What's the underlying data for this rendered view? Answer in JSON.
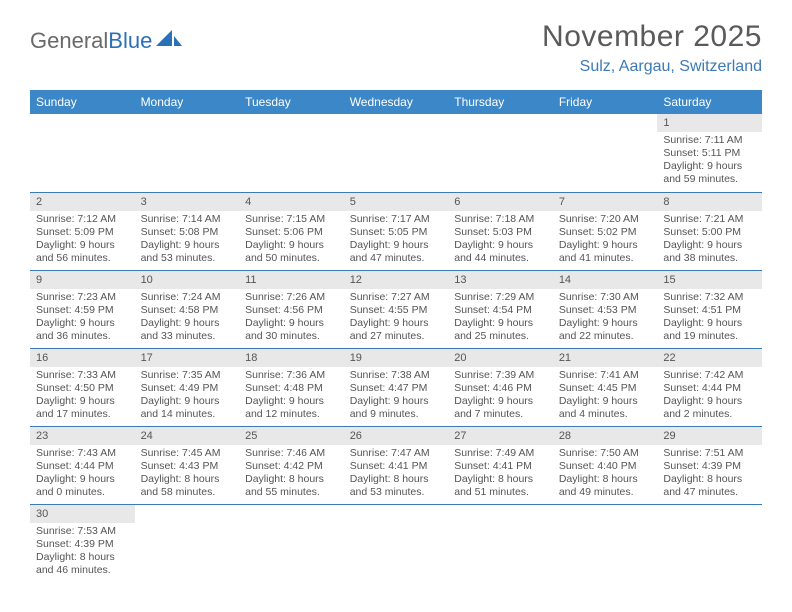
{
  "logo": {
    "text1": "General",
    "text2": "Blue"
  },
  "title": "November 2025",
  "location": "Sulz, Aargau, Switzerland",
  "colors": {
    "header_bg": "#3c87c7",
    "header_text": "#ffffff",
    "accent": "#3c7ab5",
    "daynum_bg": "#e8e8e8",
    "body_text": "#555555",
    "page_bg": "#ffffff"
  },
  "typography": {
    "title_fontsize": 30,
    "location_fontsize": 16,
    "weekday_fontsize": 12,
    "daynum_fontsize": 11,
    "body_fontsize": 10.5
  },
  "weekdays": [
    "Sunday",
    "Monday",
    "Tuesday",
    "Wednesday",
    "Thursday",
    "Friday",
    "Saturday"
  ],
  "weeks": [
    [
      null,
      null,
      null,
      null,
      null,
      null,
      {
        "n": "1",
        "sunrise": "Sunrise: 7:11 AM",
        "sunset": "Sunset: 5:11 PM",
        "daylight": "Daylight: 9 hours and 59 minutes."
      }
    ],
    [
      {
        "n": "2",
        "sunrise": "Sunrise: 7:12 AM",
        "sunset": "Sunset: 5:09 PM",
        "daylight": "Daylight: 9 hours and 56 minutes."
      },
      {
        "n": "3",
        "sunrise": "Sunrise: 7:14 AM",
        "sunset": "Sunset: 5:08 PM",
        "daylight": "Daylight: 9 hours and 53 minutes."
      },
      {
        "n": "4",
        "sunrise": "Sunrise: 7:15 AM",
        "sunset": "Sunset: 5:06 PM",
        "daylight": "Daylight: 9 hours and 50 minutes."
      },
      {
        "n": "5",
        "sunrise": "Sunrise: 7:17 AM",
        "sunset": "Sunset: 5:05 PM",
        "daylight": "Daylight: 9 hours and 47 minutes."
      },
      {
        "n": "6",
        "sunrise": "Sunrise: 7:18 AM",
        "sunset": "Sunset: 5:03 PM",
        "daylight": "Daylight: 9 hours and 44 minutes."
      },
      {
        "n": "7",
        "sunrise": "Sunrise: 7:20 AM",
        "sunset": "Sunset: 5:02 PM",
        "daylight": "Daylight: 9 hours and 41 minutes."
      },
      {
        "n": "8",
        "sunrise": "Sunrise: 7:21 AM",
        "sunset": "Sunset: 5:00 PM",
        "daylight": "Daylight: 9 hours and 38 minutes."
      }
    ],
    [
      {
        "n": "9",
        "sunrise": "Sunrise: 7:23 AM",
        "sunset": "Sunset: 4:59 PM",
        "daylight": "Daylight: 9 hours and 36 minutes."
      },
      {
        "n": "10",
        "sunrise": "Sunrise: 7:24 AM",
        "sunset": "Sunset: 4:58 PM",
        "daylight": "Daylight: 9 hours and 33 minutes."
      },
      {
        "n": "11",
        "sunrise": "Sunrise: 7:26 AM",
        "sunset": "Sunset: 4:56 PM",
        "daylight": "Daylight: 9 hours and 30 minutes."
      },
      {
        "n": "12",
        "sunrise": "Sunrise: 7:27 AM",
        "sunset": "Sunset: 4:55 PM",
        "daylight": "Daylight: 9 hours and 27 minutes."
      },
      {
        "n": "13",
        "sunrise": "Sunrise: 7:29 AM",
        "sunset": "Sunset: 4:54 PM",
        "daylight": "Daylight: 9 hours and 25 minutes."
      },
      {
        "n": "14",
        "sunrise": "Sunrise: 7:30 AM",
        "sunset": "Sunset: 4:53 PM",
        "daylight": "Daylight: 9 hours and 22 minutes."
      },
      {
        "n": "15",
        "sunrise": "Sunrise: 7:32 AM",
        "sunset": "Sunset: 4:51 PM",
        "daylight": "Daylight: 9 hours and 19 minutes."
      }
    ],
    [
      {
        "n": "16",
        "sunrise": "Sunrise: 7:33 AM",
        "sunset": "Sunset: 4:50 PM",
        "daylight": "Daylight: 9 hours and 17 minutes."
      },
      {
        "n": "17",
        "sunrise": "Sunrise: 7:35 AM",
        "sunset": "Sunset: 4:49 PM",
        "daylight": "Daylight: 9 hours and 14 minutes."
      },
      {
        "n": "18",
        "sunrise": "Sunrise: 7:36 AM",
        "sunset": "Sunset: 4:48 PM",
        "daylight": "Daylight: 9 hours and 12 minutes."
      },
      {
        "n": "19",
        "sunrise": "Sunrise: 7:38 AM",
        "sunset": "Sunset: 4:47 PM",
        "daylight": "Daylight: 9 hours and 9 minutes."
      },
      {
        "n": "20",
        "sunrise": "Sunrise: 7:39 AM",
        "sunset": "Sunset: 4:46 PM",
        "daylight": "Daylight: 9 hours and 7 minutes."
      },
      {
        "n": "21",
        "sunrise": "Sunrise: 7:41 AM",
        "sunset": "Sunset: 4:45 PM",
        "daylight": "Daylight: 9 hours and 4 minutes."
      },
      {
        "n": "22",
        "sunrise": "Sunrise: 7:42 AM",
        "sunset": "Sunset: 4:44 PM",
        "daylight": "Daylight: 9 hours and 2 minutes."
      }
    ],
    [
      {
        "n": "23",
        "sunrise": "Sunrise: 7:43 AM",
        "sunset": "Sunset: 4:44 PM",
        "daylight": "Daylight: 9 hours and 0 minutes."
      },
      {
        "n": "24",
        "sunrise": "Sunrise: 7:45 AM",
        "sunset": "Sunset: 4:43 PM",
        "daylight": "Daylight: 8 hours and 58 minutes."
      },
      {
        "n": "25",
        "sunrise": "Sunrise: 7:46 AM",
        "sunset": "Sunset: 4:42 PM",
        "daylight": "Daylight: 8 hours and 55 minutes."
      },
      {
        "n": "26",
        "sunrise": "Sunrise: 7:47 AM",
        "sunset": "Sunset: 4:41 PM",
        "daylight": "Daylight: 8 hours and 53 minutes."
      },
      {
        "n": "27",
        "sunrise": "Sunrise: 7:49 AM",
        "sunset": "Sunset: 4:41 PM",
        "daylight": "Daylight: 8 hours and 51 minutes."
      },
      {
        "n": "28",
        "sunrise": "Sunrise: 7:50 AM",
        "sunset": "Sunset: 4:40 PM",
        "daylight": "Daylight: 8 hours and 49 minutes."
      },
      {
        "n": "29",
        "sunrise": "Sunrise: 7:51 AM",
        "sunset": "Sunset: 4:39 PM",
        "daylight": "Daylight: 8 hours and 47 minutes."
      }
    ],
    [
      {
        "n": "30",
        "sunrise": "Sunrise: 7:53 AM",
        "sunset": "Sunset: 4:39 PM",
        "daylight": "Daylight: 8 hours and 46 minutes."
      },
      null,
      null,
      null,
      null,
      null,
      null
    ]
  ]
}
